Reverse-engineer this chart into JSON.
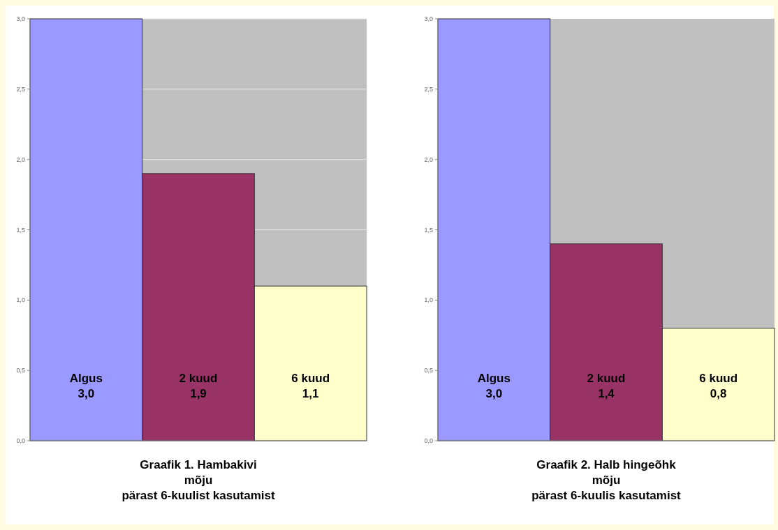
{
  "chart_data": [
    {
      "type": "bar",
      "title": "Graafik 1. Hambakivi\nmõju\npärast 6-kuulist kasutamist",
      "categories": [
        "Algus",
        "2 kuud",
        "6 kuud"
      ],
      "values": [
        3.0,
        1.9,
        1.1
      ],
      "value_labels": [
        "3,0",
        "1,9",
        "1,1"
      ],
      "colors": [
        "#9999ff",
        "#993366",
        "#ffffcc"
      ],
      "ylim": [
        0,
        3
      ],
      "yticks": [
        {
          "value": 0,
          "label": "0,0"
        },
        {
          "value": 0.5,
          "label": "0,5"
        },
        {
          "value": 1,
          "label": "1,0"
        },
        {
          "value": 1.5,
          "label": "1,5"
        },
        {
          "value": 2,
          "label": "2,0"
        },
        {
          "value": 2.5,
          "label": "2,5"
        },
        {
          "value": 3,
          "label": "3,0"
        }
      ],
      "grid": "y"
    },
    {
      "type": "bar",
      "title": "Graafik 2. Halb hingeõhk\nmõju\npärast 6-kuulis kasutamist",
      "categories": [
        "Algus",
        "2 kuud",
        "6 kuud"
      ],
      "values": [
        3.0,
        1.4,
        0.8
      ],
      "value_labels": [
        "3,0",
        "1,4",
        "0,8"
      ],
      "colors": [
        "#9999ff",
        "#993366",
        "#ffffcc"
      ],
      "ylim": [
        0,
        3
      ],
      "yticks": [
        {
          "value": 0,
          "label": "0,0"
        },
        {
          "value": 0.5,
          "label": "0,5"
        },
        {
          "value": 1,
          "label": "1,0"
        },
        {
          "value": 1.5,
          "label": "1,5"
        },
        {
          "value": 2,
          "label": "2,0"
        },
        {
          "value": 2.5,
          "label": "2,5"
        },
        {
          "value": 3,
          "label": "3,0"
        }
      ]
    }
  ]
}
